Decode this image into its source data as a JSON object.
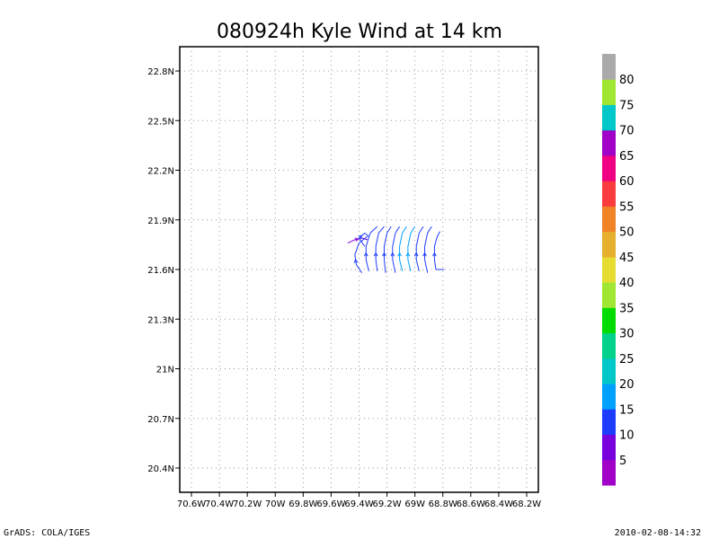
{
  "chart_data": {
    "type": "vector-field",
    "title": "080924h Kyle Wind at 14 km",
    "x_ticks": [
      "70.6W",
      "70.4W",
      "70.2W",
      "70W",
      "69.8W",
      "69.6W",
      "69.4W",
      "69.2W",
      "69W",
      "68.8W",
      "68.6W",
      "68.4W",
      "68.2W"
    ],
    "y_ticks": [
      "22.8N",
      "22.5N",
      "22.2N",
      "21.9N",
      "21.6N",
      "21.3N",
      "21N",
      "20.7N",
      "20.4N"
    ],
    "x_tick_values": [
      -70.6,
      -70.4,
      -70.2,
      -70.0,
      -69.8,
      -69.6,
      -69.4,
      -69.2,
      -69.0,
      -68.8,
      -68.6,
      -68.4,
      -68.2
    ],
    "y_tick_values": [
      22.8,
      22.5,
      22.2,
      21.9,
      21.6,
      21.3,
      21.0,
      20.7,
      20.4
    ],
    "xlim": [
      -70.6,
      -68.2
    ],
    "ylim": [
      20.4,
      22.8
    ],
    "grid": true,
    "colorbar": {
      "labels": [
        "5",
        "10",
        "15",
        "20",
        "25",
        "30",
        "35",
        "40",
        "45",
        "50",
        "55",
        "60",
        "65",
        "70",
        "75",
        "80"
      ],
      "colors": [
        "#a000c8",
        "#7800dc",
        "#1e3cff",
        "#00a0ff",
        "#00c8c8",
        "#00d28c",
        "#00dc00",
        "#a0e632",
        "#e6dc32",
        "#e6af2d",
        "#f08228",
        "#fa3c3c",
        "#f00082",
        "#a000c8",
        "#00c8c8",
        "#a0e632",
        "#aaaaaa"
      ]
    },
    "streamlines": [
      {
        "color": "#7800dc",
        "points": [
          [
            -69.48,
            21.76
          ],
          [
            -69.43,
            21.78
          ],
          [
            -69.38,
            21.79
          ],
          [
            -69.34,
            21.78
          ]
        ]
      },
      {
        "color": "#1e3cff",
        "points": [
          [
            -69.36,
            21.74
          ],
          [
            -69.4,
            21.79
          ],
          [
            -69.36,
            21.82
          ],
          [
            -69.33,
            21.8
          ]
        ]
      },
      {
        "color": "#1e3cff",
        "points": [
          [
            -69.38,
            21.58
          ],
          [
            -69.42,
            21.63
          ],
          [
            -69.43,
            21.69
          ],
          [
            -69.4,
            21.76
          ],
          [
            -69.34,
            21.8
          ]
        ]
      },
      {
        "color": "#1e3cff",
        "points": [
          [
            -69.33,
            21.59
          ],
          [
            -69.35,
            21.66
          ],
          [
            -69.35,
            21.74
          ],
          [
            -69.32,
            21.82
          ],
          [
            -69.27,
            21.86
          ]
        ]
      },
      {
        "color": "#1e3cff",
        "points": [
          [
            -69.27,
            21.59
          ],
          [
            -69.28,
            21.66
          ],
          [
            -69.28,
            21.74
          ],
          [
            -69.26,
            21.82
          ],
          [
            -69.22,
            21.86
          ]
        ]
      },
      {
        "color": "#1e3cff",
        "points": [
          [
            -69.21,
            21.58
          ],
          [
            -69.22,
            21.66
          ],
          [
            -69.22,
            21.74
          ],
          [
            -69.2,
            21.82
          ],
          [
            -69.17,
            21.86
          ]
        ]
      },
      {
        "color": "#1e3cff",
        "points": [
          [
            -69.14,
            21.58
          ],
          [
            -69.16,
            21.66
          ],
          [
            -69.16,
            21.74
          ],
          [
            -69.14,
            21.82
          ],
          [
            -69.11,
            21.86
          ]
        ]
      },
      {
        "color": "#00a0ff",
        "points": [
          [
            -69.09,
            21.59
          ],
          [
            -69.11,
            21.66
          ],
          [
            -69.11,
            21.74
          ],
          [
            -69.09,
            21.82
          ],
          [
            -69.06,
            21.86
          ]
        ]
      },
      {
        "color": "#00a0ff",
        "points": [
          [
            -69.03,
            21.59
          ],
          [
            -69.05,
            21.66
          ],
          [
            -69.05,
            21.74
          ],
          [
            -69.03,
            21.82
          ],
          [
            -69.0,
            21.86
          ]
        ]
      },
      {
        "color": "#1e3cff",
        "points": [
          [
            -68.97,
            21.59
          ],
          [
            -68.99,
            21.66
          ],
          [
            -68.99,
            21.74
          ],
          [
            -68.97,
            21.82
          ],
          [
            -68.94,
            21.86
          ]
        ]
      },
      {
        "color": "#1e3cff",
        "points": [
          [
            -68.91,
            21.58
          ],
          [
            -68.93,
            21.66
          ],
          [
            -68.93,
            21.74
          ],
          [
            -68.91,
            21.82
          ],
          [
            -68.88,
            21.86
          ]
        ]
      },
      {
        "color": "#1e3cff",
        "points": [
          [
            -68.85,
            21.6
          ],
          [
            -68.86,
            21.66
          ],
          [
            -68.86,
            21.74
          ],
          [
            -68.84,
            21.8
          ],
          [
            -68.82,
            21.83
          ]
        ]
      },
      {
        "color": "#1e3cff",
        "points": [
          [
            -68.85,
            21.6
          ],
          [
            -68.79,
            21.6
          ]
        ]
      }
    ]
  },
  "footer": {
    "left": "GrADS: COLA/IGES",
    "right": "2010-02-08-14:32"
  }
}
